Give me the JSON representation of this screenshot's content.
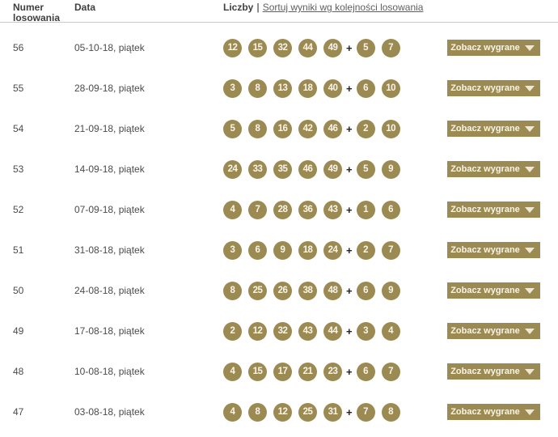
{
  "header": {
    "col_number": "Numer losowania",
    "col_date": "Data",
    "col_numbers": "Liczby",
    "separator": "|",
    "sort_link": "Sortuj wyniki wg kolejności losowania"
  },
  "button_label": "Zobacz wygrane",
  "plus_sign": "+",
  "colors": {
    "gold": "#9c8a53",
    "ball_text": "#f8f4e8",
    "header_text": "#3f3f3f",
    "body_text": "#4b4b4b",
    "link_text": "#5e5e5e",
    "header_rule": "#c9c9c9"
  },
  "rows": [
    {
      "number": "56",
      "date": "05-10-18, piątek",
      "main": [
        12,
        15,
        32,
        44,
        49
      ],
      "bonus": [
        5,
        7
      ]
    },
    {
      "number": "55",
      "date": "28-09-18, piątek",
      "main": [
        3,
        8,
        13,
        18,
        40
      ],
      "bonus": [
        6,
        10
      ]
    },
    {
      "number": "54",
      "date": "21-09-18, piątek",
      "main": [
        5,
        8,
        16,
        42,
        46
      ],
      "bonus": [
        2,
        10
      ]
    },
    {
      "number": "53",
      "date": "14-09-18, piątek",
      "main": [
        24,
        33,
        35,
        46,
        49
      ],
      "bonus": [
        5,
        9
      ]
    },
    {
      "number": "52",
      "date": "07-09-18, piątek",
      "main": [
        4,
        7,
        28,
        36,
        43
      ],
      "bonus": [
        1,
        6
      ]
    },
    {
      "number": "51",
      "date": "31-08-18, piątek",
      "main": [
        3,
        6,
        9,
        18,
        24
      ],
      "bonus": [
        2,
        7
      ]
    },
    {
      "number": "50",
      "date": "24-08-18, piątek",
      "main": [
        8,
        25,
        26,
        38,
        48
      ],
      "bonus": [
        6,
        9
      ]
    },
    {
      "number": "49",
      "date": "17-08-18, piątek",
      "main": [
        2,
        12,
        32,
        43,
        44
      ],
      "bonus": [
        3,
        4
      ]
    },
    {
      "number": "48",
      "date": "10-08-18, piątek",
      "main": [
        4,
        15,
        17,
        21,
        23
      ],
      "bonus": [
        6,
        7
      ]
    },
    {
      "number": "47",
      "date": "03-08-18, piątek",
      "main": [
        4,
        8,
        12,
        25,
        31
      ],
      "bonus": [
        7,
        8
      ]
    }
  ]
}
